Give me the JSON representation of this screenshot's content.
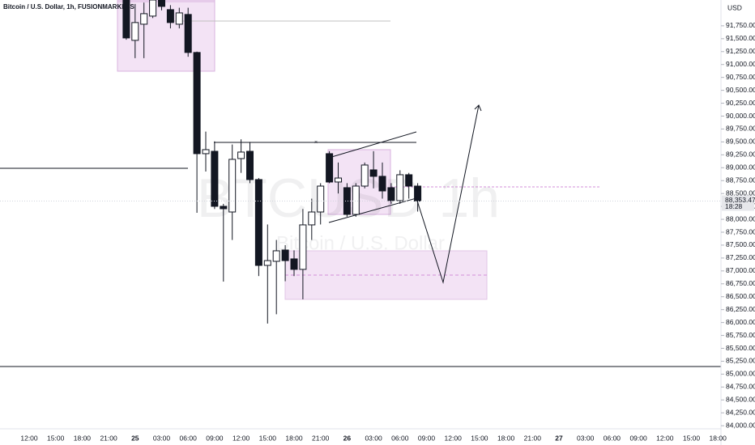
{
  "chart_data": {
    "type": "candlestick",
    "title": "Bitcoin / U.S. Dollar, 1h, FUSIONMARKETS",
    "watermark": "BTCUSD 1h",
    "watermark_subtitle": "Bitcoin / U.S. Dollar",
    "currency": "USD",
    "last_price_label": "88,353.47",
    "countdown": "18:28",
    "up_color": "#ffffff",
    "down_color": "#131722",
    "series": [
      {
        "name": "BTCUSD",
        "open": [
          92250,
          91468,
          91781,
          91938,
          92250,
          92063,
          91781,
          91970,
          91233,
          89272,
          89318,
          88252,
          88142,
          89177,
          89318,
          88770,
          87107,
          87186,
          87405,
          87233,
          87030,
          87892,
          88142,
          89272,
          88723,
          88613,
          88095,
          88644,
          88958,
          88833,
          88613,
          88362,
          88864,
          88644
        ],
        "high": [
          92300,
          92173,
          92200,
          92300,
          92300,
          92150,
          92100,
          92100,
          91250,
          89700,
          89510,
          88300,
          89450,
          89550,
          89500,
          88800,
          87900,
          87600,
          87500,
          87400,
          88200,
          88400,
          88700,
          89320,
          89100,
          88700,
          88700,
          89100,
          89320,
          89100,
          88700,
          88950,
          88900,
          88700
        ],
        "low": [
          91480,
          91123,
          91123,
          91900,
          92050,
          91700,
          91700,
          91150,
          88126,
          88926,
          88200,
          86793,
          87600,
          88900,
          88700,
          86900,
          85980,
          86160,
          86800,
          86900,
          86450,
          87600,
          87900,
          88700,
          88500,
          88050,
          88050,
          88600,
          88600,
          88400,
          88300,
          88300,
          88400,
          88150
        ],
        "close": [
          91515,
          91813,
          91985,
          92250,
          92126,
          91813,
          92000,
          91233,
          89272,
          89350,
          88252,
          88205,
          89162,
          89303,
          88770,
          87107,
          87200,
          87390,
          87200,
          87030,
          87892,
          88142,
          88644,
          88723,
          88800,
          88095,
          88644,
          89052,
          88833,
          88550,
          88362,
          88864,
          88644,
          88353.47
        ]
      }
    ],
    "xtick_labels": [
      "12:00",
      "15:00",
      "18:00",
      "21:00",
      "25",
      "03:00",
      "06:00",
      "09:00",
      "12:00",
      "15:00",
      "18:00",
      "21:00",
      "26",
      "03:00",
      "06:00",
      "09:00",
      "12:00",
      "15:00",
      "18:00",
      "21:00",
      "27",
      "03:00",
      "06:00",
      "09:00",
      "12:00",
      "15:00",
      "18:00"
    ],
    "ylim": [
      83940,
      92250
    ],
    "yticks": [
      {
        "value": 91750,
        "label": "91,750.00"
      },
      {
        "value": 91500,
        "label": "91,500.00"
      },
      {
        "value": 91250,
        "label": "91,250.00"
      },
      {
        "value": 91000,
        "label": "91,000.00"
      },
      {
        "value": 90750,
        "label": "90,750.00"
      },
      {
        "value": 90500,
        "label": "90,500.00"
      },
      {
        "value": 90250,
        "label": "90,250.00"
      },
      {
        "value": 90000,
        "label": "90,000.00"
      },
      {
        "value": 89750,
        "label": "89,750.00"
      },
      {
        "value": 89500,
        "label": "89,500.00"
      },
      {
        "value": 89250,
        "label": "89,250.00"
      },
      {
        "value": 89000,
        "label": "89,000.00"
      },
      {
        "value": 88750,
        "label": "88,750.00"
      },
      {
        "value": 88500,
        "label": "88,500.00"
      },
      {
        "value": 88250,
        "label": "88,250.00"
      },
      {
        "value": 88000,
        "label": "88,000.00"
      },
      {
        "value": 87750,
        "label": "87,750.00"
      },
      {
        "value": 87500,
        "label": "87,500.00"
      },
      {
        "value": 87250,
        "label": "87,250.00"
      },
      {
        "value": 87000,
        "label": "87,000.00"
      },
      {
        "value": 86750,
        "label": "86,750.00"
      },
      {
        "value": 86500,
        "label": "86,500.00"
      },
      {
        "value": 86250,
        "label": "86,250.00"
      },
      {
        "value": 86000,
        "label": "86,000.00"
      },
      {
        "value": 85750,
        "label": "85,750.00"
      },
      {
        "value": 85500,
        "label": "85,500.00"
      },
      {
        "value": 85250,
        "label": "85,250.00"
      },
      {
        "value": 85000,
        "label": "85,000.00"
      },
      {
        "value": 84750,
        "label": "84,750.00"
      },
      {
        "value": 84500,
        "label": "84,500.00"
      },
      {
        "value": 84250,
        "label": "84,250.00"
      },
      {
        "value": 84000,
        "label": "84,000.00"
      }
    ]
  }
}
